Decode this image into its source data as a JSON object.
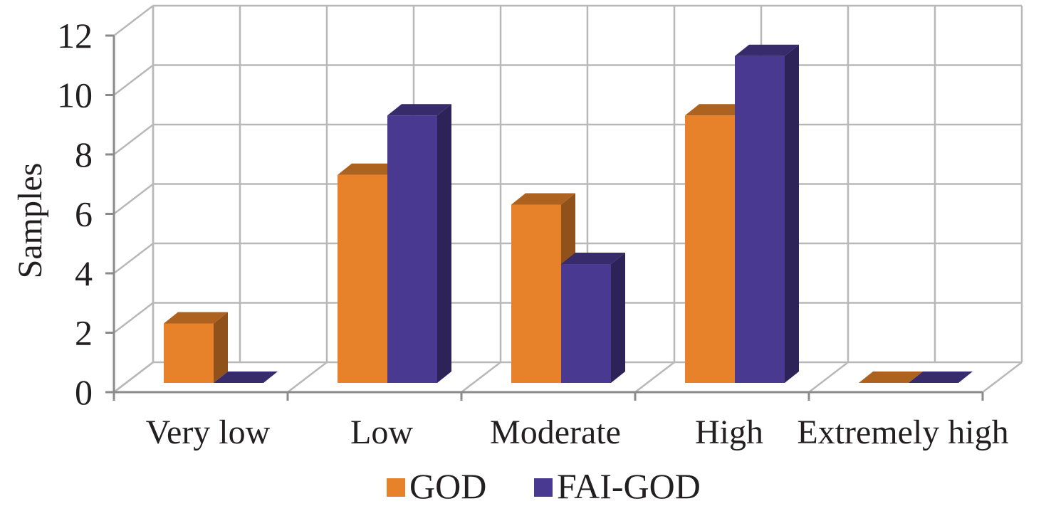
{
  "chart_data": {
    "type": "bar",
    "title": "",
    "xlabel": "",
    "ylabel": "Samples",
    "categories": [
      "Very low",
      "Low",
      "Moderate",
      "High",
      "Extremely high"
    ],
    "series": [
      {
        "name": "GOD",
        "values": [
          2,
          7,
          6,
          9,
          0
        ],
        "color": "#e8822a"
      },
      {
        "name": "FAI-GOD",
        "values": [
          0,
          9,
          4,
          11,
          0
        ],
        "color": "#4a3990"
      }
    ],
    "ylim": [
      0,
      12
    ],
    "yticks": [
      "0",
      "2",
      "4",
      "6",
      "8",
      "10",
      "12"
    ],
    "grid": true,
    "style": "3d-column",
    "legend_position": "bottom"
  }
}
